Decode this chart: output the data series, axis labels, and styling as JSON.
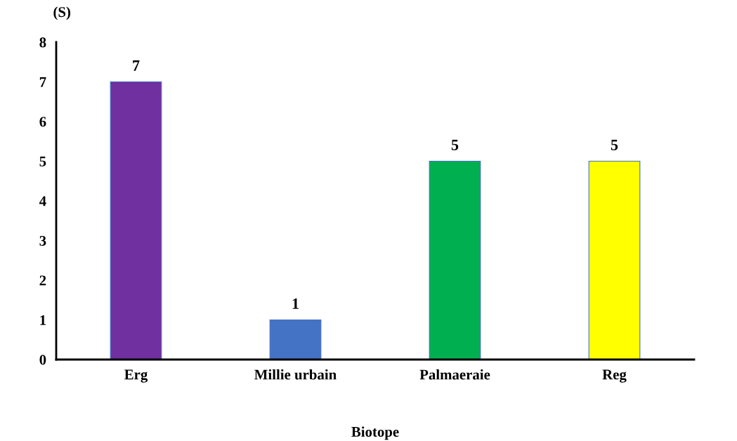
{
  "chart_data": {
    "type": "bar",
    "ylabel": "(S)",
    "xlabel": "Biotope",
    "categories": [
      "Erg",
      "Millie urbain",
      "Palmaeraie",
      "Reg"
    ],
    "values": [
      7,
      1,
      5,
      5
    ],
    "colors": [
      "#7030a0",
      "#4472c4",
      "#00b050",
      "#ffff00"
    ],
    "ylim": [
      0,
      8
    ],
    "yticks": [
      0,
      1,
      2,
      3,
      4,
      5,
      6,
      7,
      8
    ],
    "data_labels": true,
    "grid": false,
    "legend": false
  }
}
